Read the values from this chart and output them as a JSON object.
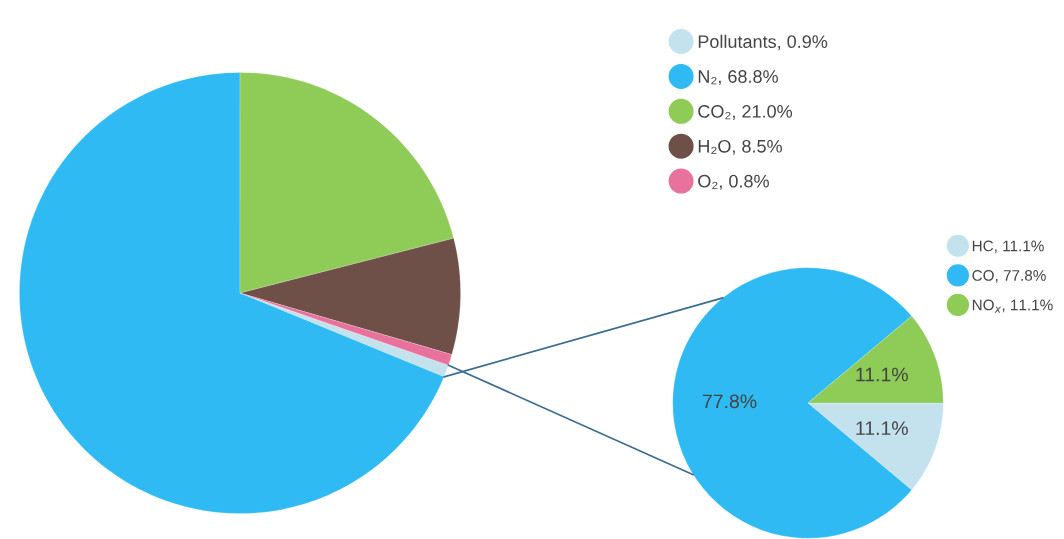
{
  "chart_data": [
    {
      "type": "pie",
      "categories": [
        "Pollutants, 0.9%",
        "N₂, 68.8%",
        "CO₂, 21.0%",
        "H₂O, 8.5%",
        "O₂, 0.8%"
      ],
      "values": [
        0.9,
        68.8,
        21.0,
        8.5,
        0.8
      ],
      "colors": [
        "#c3e2ee",
        "#2fbaf4",
        "#8ecb57",
        "#6e5048",
        "#e8729c"
      ],
      "legend": "top right"
    },
    {
      "type": "pie",
      "categories": [
        "HC, 11.1%",
        "CO, 77.8%",
        "NO$_{x}$, 11.1%"
      ],
      "values": [
        11.1,
        77.8,
        11.1
      ],
      "colors": [
        "#c3e2ee",
        "#2fbaf4",
        "#8ecb57"
      ],
      "value_labels": [
        "11.1%",
        "77.8%",
        "11.1%"
      ],
      "legend": "top right"
    }
  ]
}
